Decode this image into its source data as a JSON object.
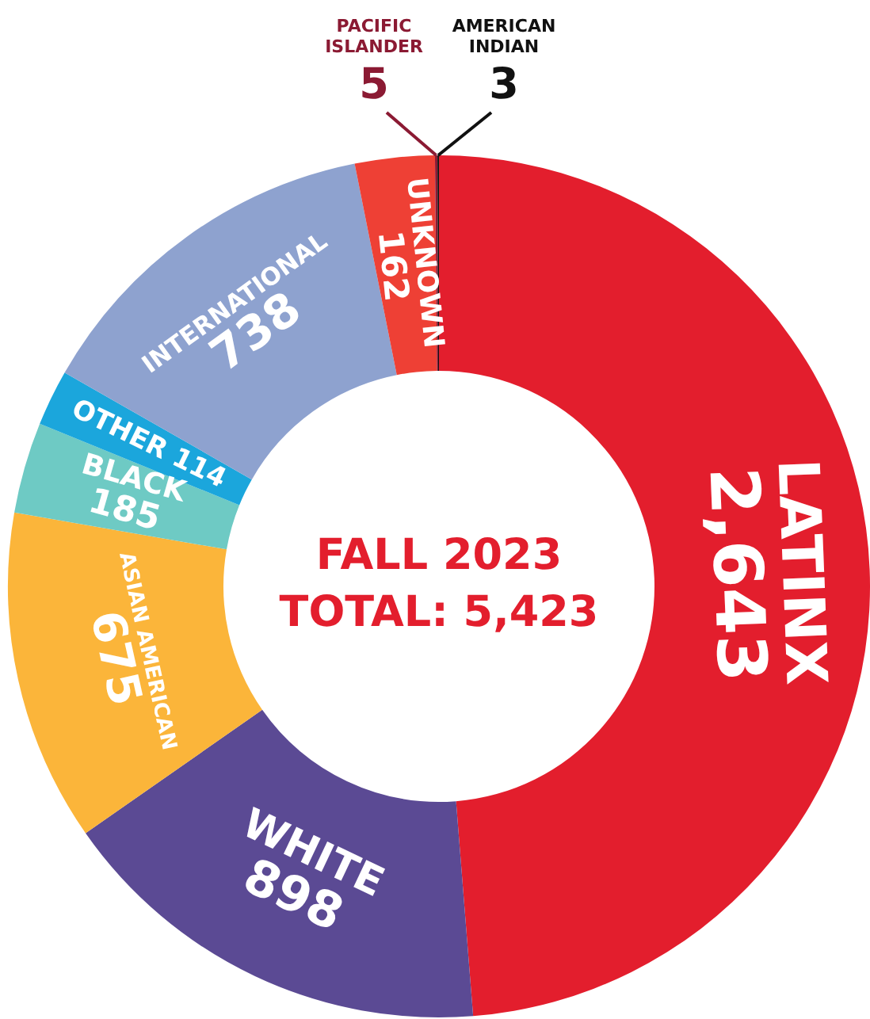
{
  "chart_data": {
    "type": "donut",
    "title": "FALL 2023",
    "subtitle": "TOTAL: 5,423",
    "categories": [
      "LATINX",
      "WHITE",
      "ASIAN AMERICAN",
      "BLACK",
      "OTHER",
      "INTERNATIONAL",
      "UNKNOWN",
      "PACIFIC ISLANDER",
      "AMERICAN INDIAN"
    ],
    "values": [
      2643,
      898,
      675,
      185,
      114,
      738,
      162,
      5,
      3
    ],
    "value_labels": [
      "2,643",
      "898",
      "675",
      "185",
      "114",
      "738",
      "162",
      "5",
      "3"
    ],
    "colors": [
      "#e31e2d",
      "#5b4a94",
      "#fbb53a",
      "#6ecac4",
      "#1ba6dc",
      "#8ea2cf",
      "#ee4035",
      "#8b1a33",
      "#111111"
    ],
    "legend": false
  }
}
